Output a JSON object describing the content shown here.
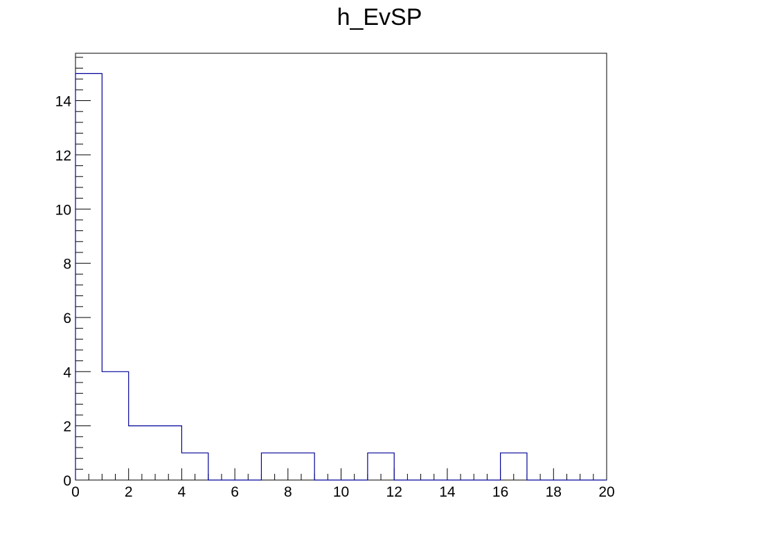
{
  "chart_data": {
    "type": "bar",
    "subtype": "step-histogram",
    "title": "h_EvSP",
    "xlabel": "",
    "ylabel": "",
    "xlim": [
      0,
      20
    ],
    "ylim": [
      0,
      15.75
    ],
    "bin_edges": [
      0,
      1,
      2,
      3,
      4,
      5,
      6,
      7,
      8,
      9,
      10,
      11,
      12,
      13,
      14,
      15,
      16,
      17,
      18,
      19,
      20
    ],
    "values": [
      15,
      4,
      2,
      2,
      1,
      0,
      0,
      1,
      1,
      0,
      0,
      1,
      0,
      0,
      0,
      0,
      1,
      0,
      0,
      0
    ],
    "x_tick_labels": [
      "0",
      "2",
      "4",
      "6",
      "8",
      "10",
      "12",
      "14",
      "16",
      "18",
      "20"
    ],
    "y_tick_labels": [
      "0",
      "2",
      "4",
      "6",
      "8",
      "10",
      "12",
      "14"
    ],
    "grid": false,
    "legend": "none",
    "line_color": "#000099",
    "frame_color": "#000000"
  }
}
